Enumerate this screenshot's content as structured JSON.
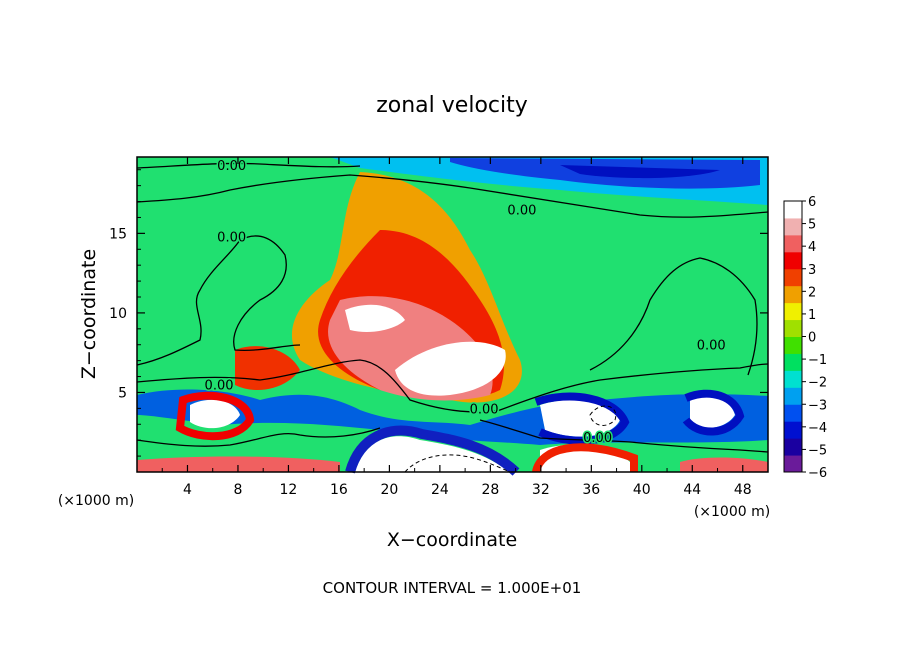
{
  "chart_data": {
    "type": "heatmap",
    "title": "zonal velocity",
    "xlabel": "X−coordinate",
    "ylabel": "Z−coordinate",
    "x_unit_label": "(×1000 m)",
    "y_unit_label": "(×1000 m)",
    "footer": "CONTOUR INTERVAL = 1.000E+01",
    "xlim": [
      0,
      50
    ],
    "ylim": [
      0,
      19.8
    ],
    "x_ticks": [
      "4",
      "8",
      "12",
      "16",
      "20",
      "24",
      "28",
      "32",
      "36",
      "40",
      "44",
      "48"
    ],
    "y_ticks": [
      "5",
      "10",
      "15"
    ],
    "colorbar": {
      "labels": [
        "6",
        "5",
        "4",
        "3",
        "2",
        "1",
        "0",
        "−1",
        "−2",
        "−3",
        "−4",
        "−5",
        "−6"
      ],
      "vmin": -6,
      "vmax": 6,
      "colors": [
        "#6a1b9a",
        "#1a00a0",
        "#0010d0",
        "#0050f0",
        "#00a0f0",
        "#00e0d0",
        "#00e060",
        "#40e000",
        "#a0e000",
        "#f0f000",
        "#f0a000",
        "#f04000",
        "#f00000",
        "#f06060",
        "#f0b0b0",
        "#ffffff"
      ]
    },
    "contour_labels": [
      {
        "text": "0.00",
        "x": 7.5,
        "y": 19.3
      },
      {
        "text": "0.00",
        "x": 30.5,
        "y": 16.5
      },
      {
        "text": "0.00",
        "x": 7.5,
        "y": 14.8
      },
      {
        "text": "0.00",
        "x": 45.5,
        "y": 8.0
      },
      {
        "text": "0.00",
        "x": 6.5,
        "y": 5.5
      },
      {
        "text": "0.00",
        "x": 27.5,
        "y": 4.0
      },
      {
        "text": "0.00",
        "x": 36.5,
        "y": 2.2
      }
    ],
    "features": [
      {
        "name": "positive core low",
        "x": 24,
        "y": 6.5,
        "u": 7
      },
      {
        "name": "positive core upper",
        "x": 18.5,
        "y": 10,
        "u": 6
      },
      {
        "name": "upper positive region",
        "x": 22,
        "y": 13,
        "u": 3.5
      },
      {
        "name": "top-right negative jet",
        "x": 38,
        "y": 18.8,
        "u": -4
      },
      {
        "name": "bottom negative core",
        "x": 22,
        "y": 1,
        "u": -7
      },
      {
        "name": "negative blob",
        "x": 36,
        "y": 3.5,
        "u": -5
      },
      {
        "name": "negative blob",
        "x": 44.5,
        "y": 3.5,
        "u": -5
      },
      {
        "name": "positive blob",
        "x": 6,
        "y": 3.5,
        "u": 5
      },
      {
        "name": "positive blob",
        "x": 36,
        "y": 1,
        "u": 5
      }
    ]
  }
}
